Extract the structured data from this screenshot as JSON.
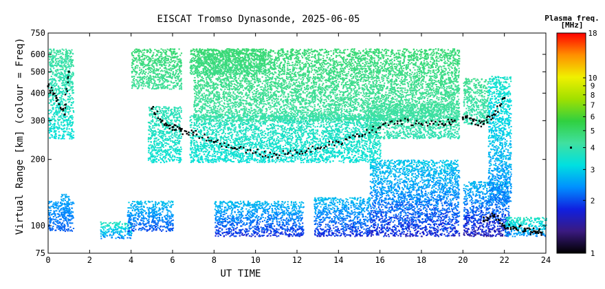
{
  "chart_data": {
    "type": "scatter",
    "title": "EISCAT Tromso Dynasonde, 2025-06-05",
    "xlabel": "UT TIME",
    "ylabel": "Virtual Range [km] (colour = Freq)",
    "xlim": [
      0,
      24
    ],
    "ylim": [
      75,
      750
    ],
    "y_scale": "log",
    "x_ticks": [
      0,
      2,
      4,
      6,
      8,
      10,
      12,
      14,
      16,
      18,
      20,
      22,
      24
    ],
    "y_ticks": [
      75,
      100,
      200,
      300,
      400,
      500,
      600,
      750
    ],
    "colorbar": {
      "title_line1": "Plasma freq.",
      "title_line2": "[MHz]",
      "scale": "log",
      "range": [
        1,
        18
      ],
      "ticks": [
        1,
        2,
        3,
        4,
        5,
        6,
        7,
        8,
        9,
        10,
        18
      ],
      "colors": [
        "#000000",
        "#3a1a80",
        "#1020e0",
        "#0090ff",
        "#00e0e0",
        "#40e0a0",
        "#30d040",
        "#a0e000",
        "#f0f000",
        "#ff9000",
        "#ff0000"
      ]
    },
    "grid": false,
    "legend": "colorbar right",
    "regions": [
      {
        "x": [
          0,
          1.2
        ],
        "y": [
          250,
          640
        ],
        "freq": [
          3.0,
          4.5
        ]
      },
      {
        "x": [
          0,
          1.2
        ],
        "y": [
          95,
          130
        ],
        "freq": [
          2.0,
          2.6
        ]
      },
      {
        "x": [
          0.6,
          1.0
        ],
        "y": [
          110,
          140
        ],
        "freq": [
          2.2,
          2.7
        ]
      },
      {
        "x": [
          2.5,
          4.0
        ],
        "y": [
          88,
          105
        ],
        "freq": [
          2.0,
          4.0
        ]
      },
      {
        "x": [
          3.8,
          6.0
        ],
        "y": [
          95,
          130
        ],
        "freq": [
          1.8,
          3.0
        ]
      },
      {
        "x": [
          4.0,
          6.4
        ],
        "y": [
          420,
          640
        ],
        "freq": [
          4.2,
          5.0
        ]
      },
      {
        "x": [
          4.8,
          6.4
        ],
        "y": [
          195,
          350
        ],
        "freq": [
          3.2,
          4.0
        ]
      },
      {
        "x": [
          6.8,
          10.5
        ],
        "y": [
          490,
          640
        ],
        "freq": [
          4.5,
          5.0
        ]
      },
      {
        "x": [
          6.8,
          16.0
        ],
        "y": [
          195,
          320
        ],
        "freq": [
          3.2,
          3.9
        ]
      },
      {
        "x": [
          7.0,
          19.8
        ],
        "y": [
          300,
          640
        ],
        "freq": [
          4.0,
          5.0
        ]
      },
      {
        "x": [
          15.3,
          19.8
        ],
        "y": [
          250,
          360
        ],
        "freq": [
          3.8,
          4.4
        ]
      },
      {
        "x": [
          8.0,
          12.3
        ],
        "y": [
          90,
          130
        ],
        "freq": [
          1.6,
          3.0
        ]
      },
      {
        "x": [
          12.8,
          15.5
        ],
        "y": [
          90,
          135
        ],
        "freq": [
          1.6,
          3.0
        ]
      },
      {
        "x": [
          15.5,
          19.8
        ],
        "y": [
          90,
          200
        ],
        "freq": [
          1.5,
          3.2
        ]
      },
      {
        "x": [
          20.0,
          21.2
        ],
        "y": [
          290,
          470
        ],
        "freq": [
          3.8,
          4.6
        ]
      },
      {
        "x": [
          20.0,
          22.2
        ],
        "y": [
          90,
          160
        ],
        "freq": [
          1.3,
          3.0
        ]
      },
      {
        "x": [
          21.2,
          22.3
        ],
        "y": [
          130,
          480
        ],
        "freq": [
          2.0,
          3.8
        ]
      },
      {
        "x": [
          22.0,
          24.0
        ],
        "y": [
          90,
          110
        ],
        "freq": [
          2.0,
          4.0
        ]
      }
    ],
    "traces": [
      {
        "name": "",
        "color": "#000000",
        "x": [
          0.0,
          0.4,
          0.8,
          1.0
        ],
        "y": [
          430,
          380,
          320,
          500
        ]
      },
      {
        "name": "",
        "color": "#000000",
        "x": [
          5.0,
          5.5,
          6.0,
          6.4,
          7.0,
          8.0,
          9.0,
          10.0,
          11.0,
          12.0,
          13.0,
          14.0,
          15.0,
          16.0,
          17.0,
          18.0,
          19.0,
          19.6
        ],
        "y": [
          340,
          300,
          280,
          270,
          265,
          240,
          225,
          215,
          210,
          215,
          225,
          240,
          255,
          280,
          300,
          290,
          290,
          300
        ]
      },
      {
        "name": "",
        "color": "#000000",
        "x": [
          20.0,
          20.5,
          21.0,
          21.5,
          22.0
        ],
        "y": [
          310,
          300,
          290,
          320,
          380
        ]
      },
      {
        "name": "",
        "color": "#000000",
        "x": [
          21.0,
          21.5,
          22.0,
          22.5,
          23.0,
          23.5,
          23.8
        ],
        "y": [
          105,
          110,
          100,
          98,
          96,
          94,
          93
        ]
      }
    ]
  }
}
